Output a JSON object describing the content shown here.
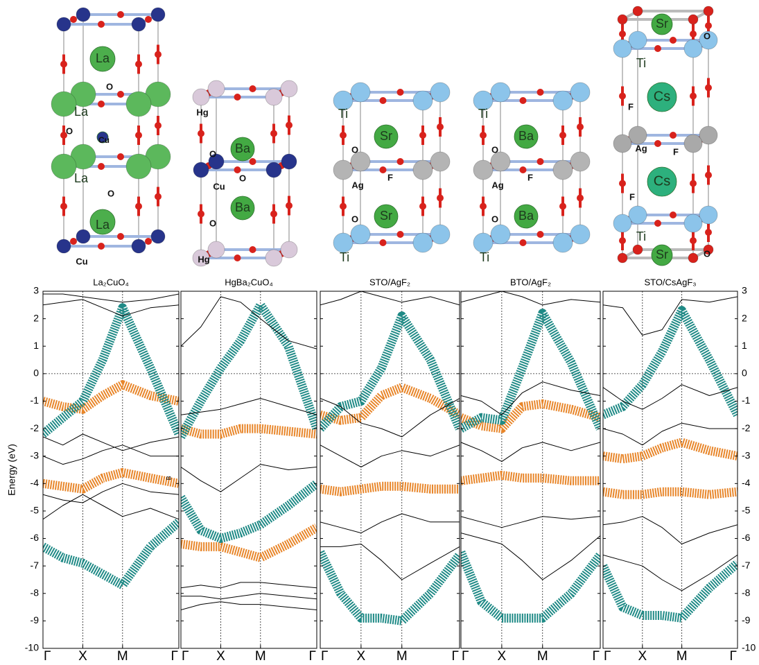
{
  "structures": [
    {
      "labels": [
        "La",
        "O",
        "La",
        "O",
        "Cu",
        "La",
        "O",
        "La",
        "Cu"
      ]
    },
    {
      "labels": [
        "Hg",
        "Ba",
        "O",
        "O",
        "Cu",
        "Ba",
        "O",
        "Hg"
      ]
    },
    {
      "labels": [
        "Ti",
        "Sr",
        "O",
        "Ag",
        "F",
        "O",
        "Sr",
        "Ti"
      ]
    },
    {
      "labels": [
        "Ti",
        "Ba",
        "O",
        "Ag",
        "F",
        "O",
        "Ba",
        "Ti"
      ]
    },
    {
      "labels": [
        "Sr",
        "O",
        "Ti",
        "F",
        "Cs",
        "Ag",
        "F",
        "Cs",
        "F",
        "Ti",
        "Sr",
        "O"
      ]
    }
  ],
  "chart_data": [
    {
      "type": "line",
      "title": "La₂CuO₄",
      "y_label": "Energy (eV)",
      "annotation": "B",
      "x": [
        0,
        0.5,
        1,
        1.5,
        2,
        2.7,
        3.414
      ],
      "xlim": [
        0,
        3.414
      ],
      "xticks": [
        {
          "value": 0,
          "label": "Γ"
        },
        {
          "value": 1,
          "label": "X"
        },
        {
          "value": 2,
          "label": "M"
        },
        {
          "value": 3.414,
          "label": "Γ"
        }
      ],
      "ylim": [
        -10,
        3
      ],
      "yticks": [
        -10,
        -9,
        -8,
        -7,
        -6,
        -5,
        -4,
        -3,
        -2,
        -1,
        0,
        1,
        2,
        3
      ],
      "grid": true,
      "zero_line": true,
      "series": [
        {
          "color": "#e8862a",
          "values": [
            -1.0,
            -1.2,
            -1.3,
            -0.8,
            -0.4,
            -0.8,
            -1.0
          ]
        },
        {
          "color": "#e8862a",
          "values": [
            -4.0,
            -4.1,
            -4.2,
            -3.8,
            -3.6,
            -3.8,
            -4.0
          ]
        },
        {
          "color": "#1f8a86",
          "values": [
            -2.2,
            -1.6,
            -1.0,
            0.5,
            2.4,
            0.2,
            -2.2
          ]
        },
        {
          "color": "#1f8a86",
          "values": [
            -6.3,
            -6.7,
            -6.9,
            -7.3,
            -7.7,
            -6.3,
            -5.4
          ]
        },
        {
          "color": "#000000",
          "values": [
            2.9,
            2.9,
            2.8,
            2.7,
            2.6,
            2.7,
            2.9
          ]
        },
        {
          "color": "#000000",
          "values": [
            2.5,
            2.6,
            2.7,
            2.4,
            2.1,
            2.4,
            2.5
          ]
        },
        {
          "color": "#000000",
          "values": [
            -2.3,
            -2.6,
            -2.2,
            -2.5,
            -2.8,
            -2.5,
            -2.3
          ]
        },
        {
          "color": "#000000",
          "values": [
            -3.0,
            -3.3,
            -3.1,
            -2.8,
            -2.6,
            -3.0,
            -3.0
          ]
        },
        {
          "color": "#000000",
          "values": [
            -5.3,
            -4.8,
            -4.4,
            -4.8,
            -5.2,
            -4.9,
            -5.3
          ]
        },
        {
          "color": "#000000",
          "values": [
            -4.4,
            -4.6,
            -4.7,
            -4.3,
            -4.0,
            -4.3,
            -4.4
          ]
        }
      ]
    },
    {
      "type": "line",
      "title": "HgBa₂CuO₄",
      "x": [
        0,
        0.5,
        1,
        1.5,
        2,
        2.7,
        3.414
      ],
      "xlim": [
        0,
        3.414
      ],
      "xticks": [
        {
          "value": 0,
          "label": "Γ"
        },
        {
          "value": 1,
          "label": "X"
        },
        {
          "value": 2,
          "label": "M"
        },
        {
          "value": 3.414,
          "label": "Γ"
        }
      ],
      "ylim": [
        -10,
        3
      ],
      "yticks": [
        -10,
        -9,
        -8,
        -7,
        -6,
        -5,
        -4,
        -3,
        -2,
        -1,
        0,
        1,
        2,
        3
      ],
      "grid": true,
      "zero_line": true,
      "series": [
        {
          "color": "#e8862a",
          "values": [
            -2.0,
            -2.2,
            -2.2,
            -2.0,
            -2.0,
            -2.1,
            -2.2
          ]
        },
        {
          "color": "#e8862a",
          "values": [
            -6.2,
            -6.3,
            -6.3,
            -6.5,
            -6.7,
            -6.2,
            -5.6
          ]
        },
        {
          "color": "#1f8a86",
          "values": [
            -2.3,
            -1.0,
            0.2,
            1.2,
            2.5,
            1.0,
            -2.0
          ]
        },
        {
          "color": "#1f8a86",
          "values": [
            -4.5,
            -5.7,
            -6.0,
            -5.8,
            -5.5,
            -4.8,
            -4.0
          ]
        },
        {
          "color": "#000000",
          "values": [
            1.0,
            1.7,
            2.8,
            2.6,
            2.0,
            1.2,
            0.9
          ]
        },
        {
          "color": "#000000",
          "values": [
            -7.8,
            -7.7,
            -7.8,
            -7.6,
            -7.6,
            -7.7,
            -7.8
          ]
        },
        {
          "color": "#000000",
          "values": [
            -8.1,
            -8.1,
            -8.2,
            -8.1,
            -8.0,
            -8.1,
            -8.2
          ]
        },
        {
          "color": "#000000",
          "values": [
            -8.6,
            -8.4,
            -8.3,
            -8.4,
            -8.4,
            -8.5,
            -8.6
          ]
        },
        {
          "color": "#000000",
          "values": [
            -3.4,
            -3.9,
            -4.3,
            -3.8,
            -3.3,
            -3.5,
            -3.4
          ]
        },
        {
          "color": "#000000",
          "values": [
            -1.5,
            -1.4,
            -1.3,
            -1.1,
            -0.9,
            -1.2,
            -1.5
          ]
        }
      ]
    },
    {
      "type": "line",
      "title": "STO/AgF₂",
      "x": [
        0,
        0.5,
        1,
        1.5,
        2,
        2.7,
        3.414
      ],
      "xlim": [
        0,
        3.414
      ],
      "xticks": [
        {
          "value": 0,
          "label": "Γ"
        },
        {
          "value": 1,
          "label": "X"
        },
        {
          "value": 2,
          "label": "M"
        },
        {
          "value": 3.414,
          "label": "Γ"
        }
      ],
      "ylim": [
        -10,
        3
      ],
      "yticks": [
        -10,
        -9,
        -8,
        -7,
        -6,
        -5,
        -4,
        -3,
        -2,
        -1,
        0,
        1,
        2,
        3
      ],
      "grid": true,
      "zero_line": true,
      "series": [
        {
          "color": "#e8862a",
          "values": [
            -1.5,
            -1.7,
            -1.6,
            -0.8,
            -0.5,
            -0.9,
            -1.5
          ]
        },
        {
          "color": "#e8862a",
          "values": [
            -4.2,
            -4.3,
            -4.2,
            -4.1,
            -4.1,
            -4.2,
            -4.2
          ]
        },
        {
          "color": "#1f8a86",
          "values": [
            -2.0,
            -1.2,
            -1.0,
            0.2,
            2.1,
            0.5,
            -2.0
          ]
        },
        {
          "color": "#1f8a86",
          "values": [
            -6.5,
            -8.0,
            -8.9,
            -8.9,
            -9.0,
            -8.0,
            -6.6
          ]
        },
        {
          "color": "#000000",
          "values": [
            2.5,
            2.7,
            3.0,
            2.8,
            2.6,
            2.8,
            2.5
          ]
        },
        {
          "color": "#000000",
          "values": [
            -0.9,
            -1.2,
            -1.8,
            -2.0,
            -2.3,
            -1.5,
            -0.9
          ]
        },
        {
          "color": "#000000",
          "values": [
            -2.6,
            -3.0,
            -3.4,
            -3.0,
            -2.8,
            -3.0,
            -2.6
          ]
        },
        {
          "color": "#000000",
          "values": [
            -5.4,
            -5.6,
            -5.8,
            -5.4,
            -5.1,
            -5.4,
            -5.4
          ]
        },
        {
          "color": "#000000",
          "values": [
            -6.3,
            -6.3,
            -6.2,
            -6.8,
            -7.5,
            -6.9,
            -6.3
          ]
        }
      ]
    },
    {
      "type": "line",
      "title": "BTO/AgF₂",
      "x": [
        0,
        0.5,
        1,
        1.5,
        2,
        2.7,
        3.414
      ],
      "xlim": [
        0,
        3.414
      ],
      "xticks": [
        {
          "value": 0,
          "label": "Γ"
        },
        {
          "value": 1,
          "label": "X"
        },
        {
          "value": 2,
          "label": "M"
        },
        {
          "value": 3.414,
          "label": "Γ"
        }
      ],
      "ylim": [
        -10,
        3
      ],
      "yticks": [
        -10,
        -9,
        -8,
        -7,
        -6,
        -5,
        -4,
        -3,
        -2,
        -1,
        0,
        1,
        2,
        3
      ],
      "grid": true,
      "zero_line": true,
      "series": [
        {
          "color": "#e8862a",
          "values": [
            -1.6,
            -1.9,
            -2.0,
            -1.2,
            -1.1,
            -1.3,
            -1.6
          ]
        },
        {
          "color": "#e8862a",
          "values": [
            -3.9,
            -3.8,
            -3.7,
            -3.8,
            -3.8,
            -3.9,
            -3.9
          ]
        },
        {
          "color": "#1f8a86",
          "values": [
            -2.0,
            -1.6,
            -1.7,
            0.2,
            2.2,
            0.4,
            -2.0
          ]
        },
        {
          "color": "#1f8a86",
          "values": [
            -6.5,
            -8.3,
            -8.9,
            -8.9,
            -8.9,
            -8.0,
            -6.6
          ]
        },
        {
          "color": "#000000",
          "values": [
            2.6,
            2.8,
            3.0,
            2.8,
            2.5,
            2.7,
            2.6
          ]
        },
        {
          "color": "#000000",
          "values": [
            -0.8,
            -1.0,
            -1.5,
            -0.7,
            -0.3,
            -0.6,
            -0.8
          ]
        },
        {
          "color": "#000000",
          "values": [
            -2.5,
            -2.8,
            -3.2,
            -2.7,
            -2.5,
            -2.8,
            -2.5
          ]
        },
        {
          "color": "#000000",
          "values": [
            -5.2,
            -5.4,
            -5.6,
            -5.4,
            -5.2,
            -5.3,
            -5.2
          ]
        },
        {
          "color": "#000000",
          "values": [
            -5.8,
            -6.0,
            -6.2,
            -6.8,
            -7.5,
            -6.8,
            -5.9
          ]
        }
      ]
    },
    {
      "type": "line",
      "title": "STO/CsAgF₃",
      "x": [
        0,
        0.5,
        1,
        1.5,
        2,
        2.7,
        3.414
      ],
      "xlim": [
        0,
        3.414
      ],
      "xticks": [
        {
          "value": 0,
          "label": "Γ"
        },
        {
          "value": 1,
          "label": "X"
        },
        {
          "value": 2,
          "label": "M"
        },
        {
          "value": 3.414,
          "label": "Γ"
        }
      ],
      "ylim": [
        -10,
        3
      ],
      "yticks": [
        -10,
        -9,
        -8,
        -7,
        -6,
        -5,
        -4,
        -3,
        -2,
        -1,
        0,
        1,
        2,
        3
      ],
      "grid": true,
      "zero_line": true,
      "series": [
        {
          "color": "#e8862a",
          "values": [
            -3.0,
            -3.1,
            -3.0,
            -2.7,
            -2.5,
            -2.8,
            -3.0
          ]
        },
        {
          "color": "#e8862a",
          "values": [
            -4.3,
            -4.4,
            -4.4,
            -4.3,
            -4.3,
            -4.4,
            -4.3
          ]
        },
        {
          "color": "#1f8a86",
          "values": [
            -1.5,
            -1.2,
            -0.4,
            0.8,
            2.3,
            0.5,
            -1.5
          ]
        },
        {
          "color": "#1f8a86",
          "values": [
            -7.0,
            -8.5,
            -8.8,
            -8.8,
            -8.9,
            -7.8,
            -6.9
          ]
        },
        {
          "color": "#000000",
          "values": [
            2.5,
            2.4,
            1.4,
            1.6,
            2.7,
            2.6,
            2.8
          ]
        },
        {
          "color": "#000000",
          "values": [
            -0.5,
            -1.0,
            -1.3,
            -0.9,
            -0.4,
            -0.8,
            -0.5
          ]
        },
        {
          "color": "#000000",
          "values": [
            -2.0,
            -2.2,
            -2.6,
            -2.1,
            -1.8,
            -2.0,
            -2.0
          ]
        },
        {
          "color": "#000000",
          "values": [
            -5.5,
            -5.4,
            -5.2,
            -5.6,
            -6.2,
            -5.8,
            -5.5
          ]
        },
        {
          "color": "#000000",
          "values": [
            -6.6,
            -6.8,
            -7.0,
            -7.5,
            -7.9,
            -7.3,
            -6.6
          ]
        }
      ]
    }
  ]
}
